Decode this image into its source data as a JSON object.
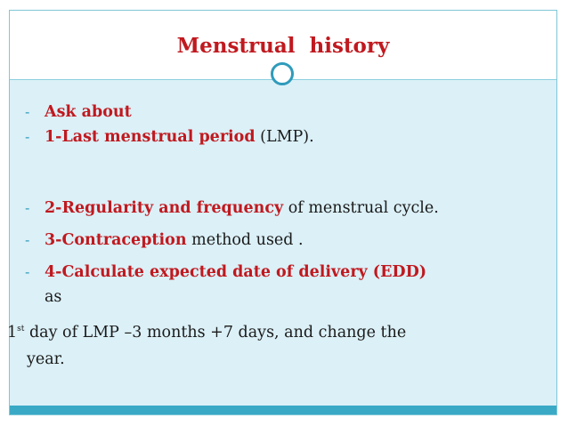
{
  "slide": {
    "title": "Menstrual  history",
    "bullet_marker": "-",
    "items": [
      {
        "bold": "Ask about",
        "rest": ""
      },
      {
        "bold": "1-Last menstrual period",
        "rest": " (LMP)."
      },
      {
        "bold": "2-Regularity and frequency",
        "rest": " of menstrual cycle."
      },
      {
        "bold": "3-Contraception",
        "rest": " method used ."
      },
      {
        "bold": "4-Calculate expected date of delivery (EDD)",
        "rest": ""
      }
    ],
    "continuation_as": "as",
    "formula_prefix": "1",
    "formula_sup": "st",
    "formula_text": " day of LMP –3 months +7 days, and change the",
    "formula_line2": "year."
  },
  "colors": {
    "accent_red": "#c0191f",
    "accent_blue": "#2f9bbb",
    "content_bg": "#dbf0f7",
    "bottom_band": "#3aa9c6"
  }
}
